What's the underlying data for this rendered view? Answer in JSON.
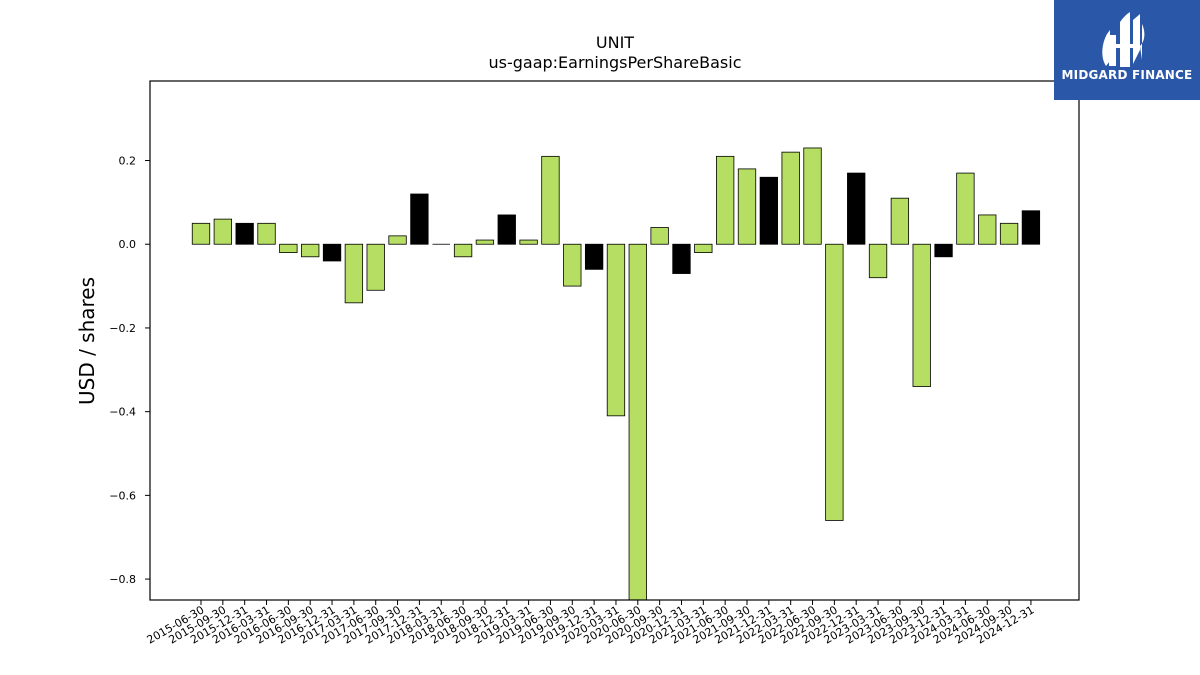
{
  "logo": {
    "text": "MIDGARD FINANCE",
    "background": "#2a57a8"
  },
  "chart_data": {
    "type": "bar",
    "title": "UNIT",
    "subtitle": "us-gaap:EarningsPerShareBasic",
    "xlabel": "",
    "ylabel": "USD / shares",
    "ylim": [
      -0.85,
      0.39
    ],
    "yticks": [
      -0.8,
      -0.6,
      -0.4,
      -0.2,
      0.0,
      0.2
    ],
    "grid": false,
    "colors": {
      "quarter": "#b5de63",
      "year_end": "#000000",
      "edge": "#000000"
    },
    "categories": [
      "2015-06-30",
      "2015-09-30",
      "2015-12-31",
      "2016-03-31",
      "2016-06-30",
      "2016-09-30",
      "2016-12-31",
      "2017-03-31",
      "2017-06-30",
      "2017-09-30",
      "2017-12-31",
      "2018-03-31",
      "2018-06-30",
      "2018-09-30",
      "2018-12-31",
      "2019-03-31",
      "2019-06-30",
      "2019-09-30",
      "2019-12-31",
      "2020-03-31",
      "2020-06-30",
      "2020-09-30",
      "2020-12-31",
      "2021-03-31",
      "2021-06-30",
      "2021-09-30",
      "2021-12-31",
      "2022-03-31",
      "2022-06-30",
      "2022-09-30",
      "2022-12-31",
      "2023-03-31",
      "2023-06-30",
      "2023-09-30",
      "2023-12-31",
      "2024-03-31",
      "2024-06-30",
      "2024-09-30",
      "2024-12-31"
    ],
    "values": [
      0.05,
      0.06,
      0.05,
      0.05,
      -0.02,
      -0.03,
      -0.04,
      -0.14,
      -0.11,
      0.02,
      0.12,
      0.0,
      -0.03,
      0.01,
      0.07,
      0.01,
      0.21,
      -0.1,
      -0.06,
      -0.41,
      -0.9,
      0.04,
      -0.07,
      -0.02,
      0.21,
      0.18,
      0.16,
      0.22,
      0.23,
      -0.66,
      0.17,
      -0.08,
      0.11,
      -0.34,
      -0.03,
      0.17,
      0.07,
      0.05,
      0.08
    ]
  }
}
